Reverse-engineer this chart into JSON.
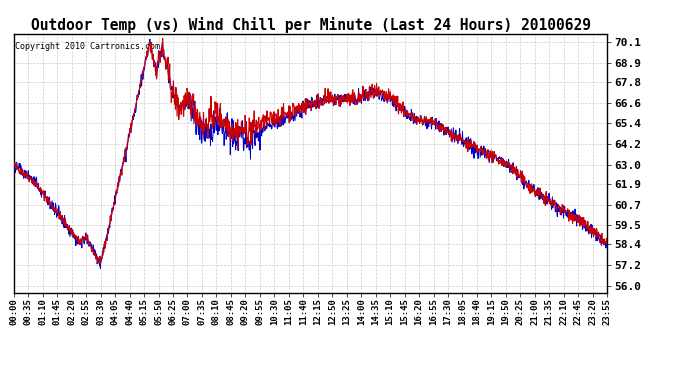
{
  "title": "Outdoor Temp (vs) Wind Chill per Minute (Last 24 Hours) 20100629",
  "copyright": "Copyright 2010 Cartronics.com",
  "bg_color": "#ffffff",
  "plot_bg_color": "#ffffff",
  "grid_color": "#cccccc",
  "line_color": "#cc0000",
  "line_color2": "#0000cc",
  "yticks": [
    56.0,
    57.2,
    58.4,
    59.5,
    60.7,
    61.9,
    63.0,
    64.2,
    65.4,
    66.6,
    67.8,
    68.9,
    70.1
  ],
  "ylim": [
    55.6,
    70.6
  ],
  "xtick_labels": [
    "00:00",
    "00:35",
    "01:10",
    "01:45",
    "02:20",
    "02:55",
    "03:30",
    "04:05",
    "04:40",
    "05:15",
    "05:50",
    "06:25",
    "07:00",
    "07:35",
    "08:10",
    "08:45",
    "09:20",
    "09:55",
    "10:30",
    "11:05",
    "11:40",
    "12:15",
    "12:50",
    "13:25",
    "14:00",
    "14:35",
    "15:10",
    "15:45",
    "16:20",
    "16:55",
    "17:30",
    "18:05",
    "18:40",
    "19:15",
    "19:50",
    "20:25",
    "21:00",
    "21:35",
    "22:10",
    "22:45",
    "23:20",
    "23:55"
  ]
}
